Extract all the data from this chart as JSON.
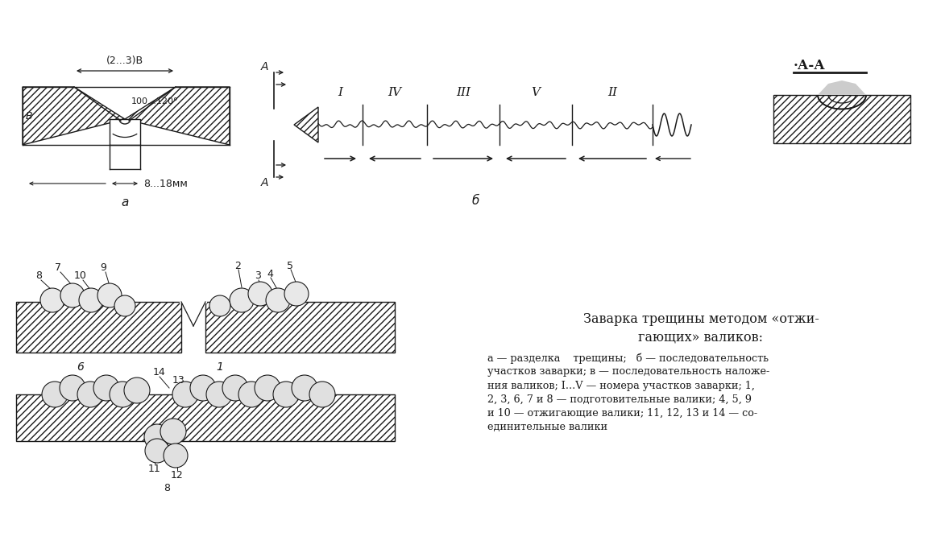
{
  "fig_width": 11.68,
  "fig_height": 6.92,
  "caption_title": "Заварка трещины методом «отжи-\nгающих» валиков:",
  "caption_body": "а — разделка    трещины;   б — последовательность\nучастков заварки; в — последовательность наложе-\nния валиков; I...V — номера участков заварки; 1,\n2, 3, 6, 7 и 8 — подготовительные валики; 4, 5, 9\nи 10 — отжигающие валики; 11, 12, 13 и 14 — со-\nединительные валики",
  "roman_labels": [
    "I",
    "IV",
    "III",
    "V",
    "II"
  ],
  "lc": "#1a1a1a"
}
